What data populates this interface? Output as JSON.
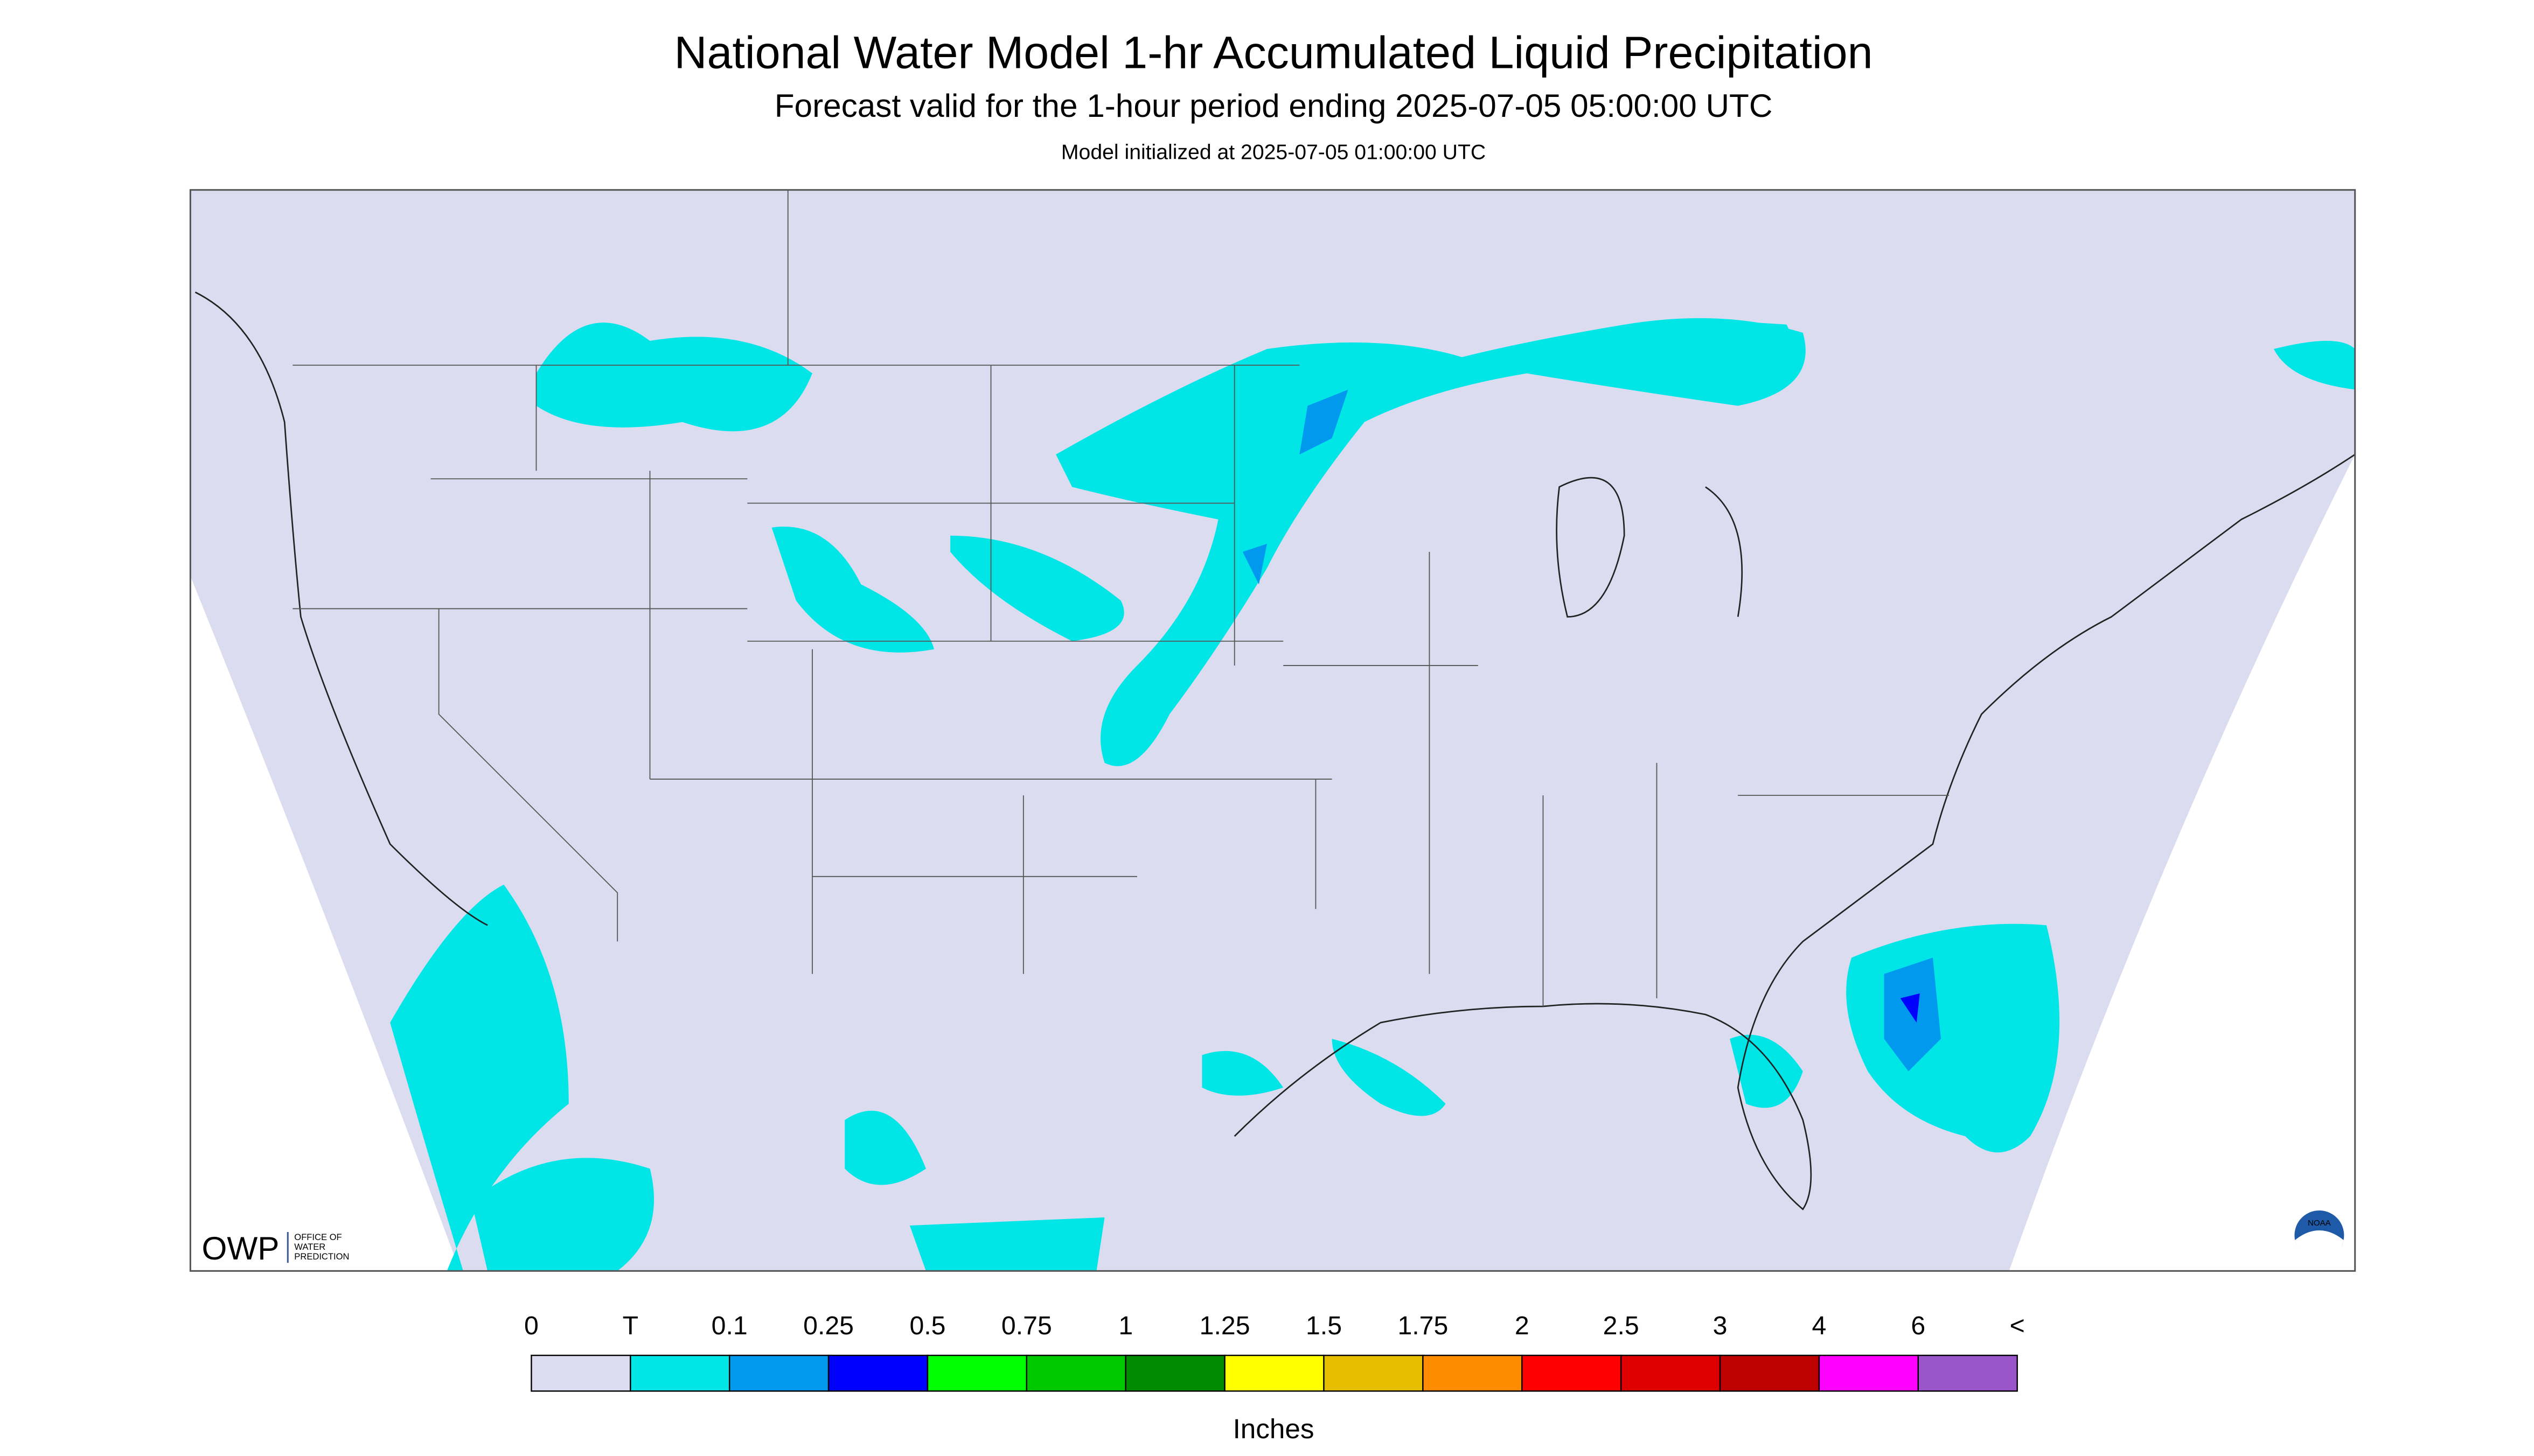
{
  "header": {
    "title": "National Water Model 1-hr Accumulated Liquid Precipitation",
    "subtitle": "Forecast valid for the 1-hour period ending 2025-07-05 05:00:00 UTC",
    "note": "Model initialized at 2025-07-05 01:00:00 UTC"
  },
  "logo": {
    "acronym": "OWP",
    "name": [
      "OFFICE OF",
      "WATER",
      "PREDICTION"
    ],
    "badge": "NOAA"
  },
  "legend": {
    "labels": [
      "0",
      "T",
      "0.1",
      "0.25",
      "0.5",
      "0.75",
      "1",
      "1.25",
      "1.5",
      "1.75",
      "2",
      "2.5",
      "3",
      "4",
      "6",
      "<"
    ],
    "colors": [
      "#dcdcf0",
      "#00e6e6",
      "#0099ee",
      "#0000ff",
      "#00ff00",
      "#00c800",
      "#008c00",
      "#ffff00",
      "#e6be00",
      "#ff8c00",
      "#ff0000",
      "#dc0000",
      "#be0000",
      "#ff00ff",
      "#9955c9"
    ],
    "unit": "Inches"
  }
}
